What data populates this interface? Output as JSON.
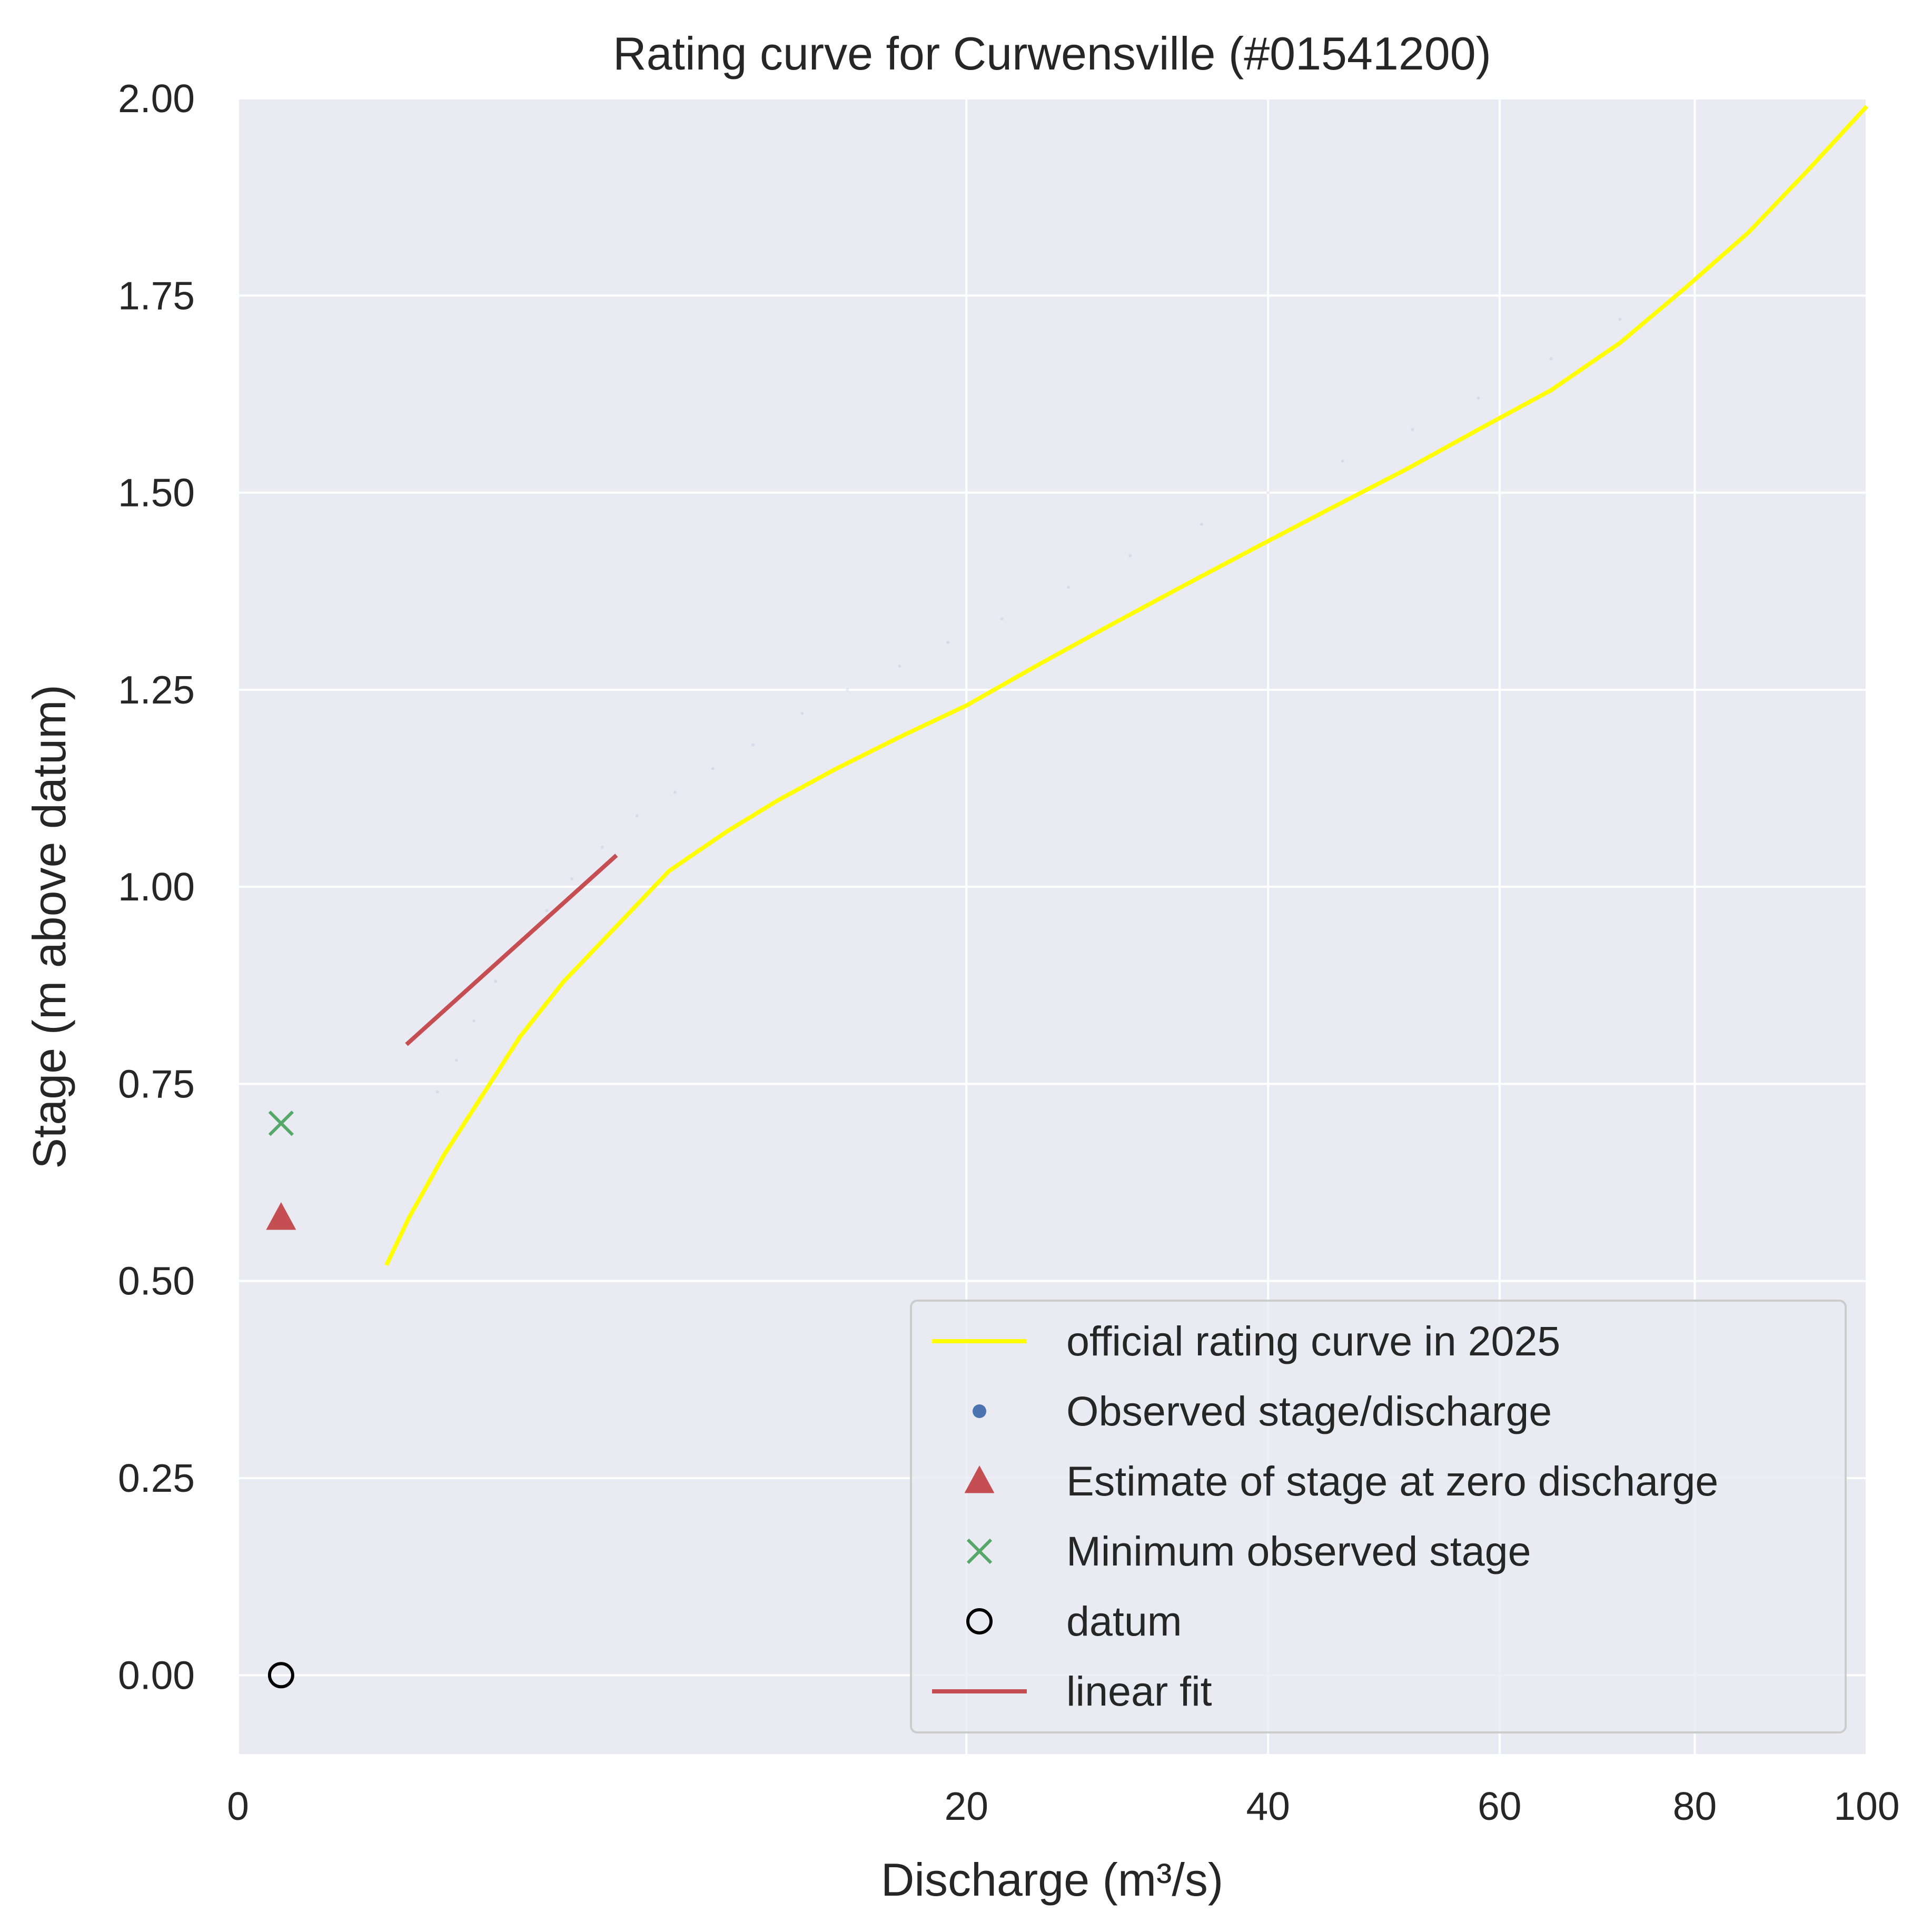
{
  "chart_data": {
    "type": "line",
    "title": "Rating curve for Curwensville (#01541200)",
    "xlabel": "Discharge (m³/s)",
    "ylabel": "Stage (m above datum)",
    "x_scale": "sqrt",
    "xlim": [
      0,
      100
    ],
    "ylim": [
      -0.1,
      2.0
    ],
    "x_ticks": [
      0,
      20,
      40,
      60,
      80,
      100
    ],
    "x_tick_labels": [
      "0",
      "20",
      "40",
      "60",
      "80",
      "100"
    ],
    "y_ticks": [
      0.0,
      0.25,
      0.5,
      0.75,
      1.0,
      1.25,
      1.5,
      1.75,
      2.0
    ],
    "y_tick_labels": [
      "0.00",
      "0.25",
      "0.50",
      "0.75",
      "1.00",
      "1.25",
      "1.50",
      "1.75",
      "2.00"
    ],
    "grid": true,
    "legend_position": "lower right",
    "series": [
      {
        "name": "official rating curve in 2025",
        "kind": "line",
        "color": "#ffff00",
        "x": [
          0.83,
          1.1,
          1.6,
          2.2,
          3.0,
          4.0,
          5.4,
          7.0,
          9.0,
          11.0,
          13.5,
          16.5,
          20.0,
          24.0,
          28.5,
          33.5,
          39.0,
          45.0,
          51.5,
          58.0,
          65.0,
          72.0,
          79.0,
          86.0,
          93.0,
          100.0
        ],
        "y": [
          0.52,
          0.58,
          0.66,
          0.73,
          0.81,
          0.88,
          0.95,
          1.02,
          1.07,
          1.11,
          1.15,
          1.19,
          1.23,
          1.28,
          1.33,
          1.38,
          1.43,
          1.48,
          1.53,
          1.58,
          1.63,
          1.69,
          1.76,
          1.83,
          1.91,
          1.99
        ]
      },
      {
        "name": "Observed stage/discharge",
        "kind": "scatter",
        "color": "#4c72b0",
        "x": [
          1.5,
          1.8,
          2.1,
          2.5,
          3.0,
          3.6,
          4.2,
          5.0,
          6.0,
          7.2,
          8.5,
          10.0,
          12.0,
          14.0,
          16.5,
          19.0,
          22.0,
          26.0,
          30.0,
          35.0,
          40.0,
          46.0,
          52.0,
          58.0,
          65.0,
          72.0
        ],
        "y": [
          0.74,
          0.78,
          0.83,
          0.88,
          0.93,
          0.97,
          1.01,
          1.05,
          1.09,
          1.12,
          1.15,
          1.18,
          1.22,
          1.25,
          1.28,
          1.31,
          1.34,
          1.38,
          1.42,
          1.46,
          1.5,
          1.54,
          1.58,
          1.62,
          1.67,
          1.72
        ]
      },
      {
        "name": "Estimate of stage at zero discharge",
        "kind": "marker",
        "marker": "triangle",
        "color": "#c44e52",
        "x": [
          0.07
        ],
        "y": [
          0.58
        ]
      },
      {
        "name": "Minimum observed stage",
        "kind": "marker",
        "marker": "x",
        "color": "#55a868",
        "x": [
          0.07
        ],
        "y": [
          0.7
        ]
      },
      {
        "name": "datum",
        "kind": "marker",
        "marker": "circle",
        "color": "#000000",
        "x": [
          0.07
        ],
        "y": [
          0.0
        ]
      },
      {
        "name": "linear fit",
        "kind": "line",
        "color": "#c44e52",
        "x": [
          1.07,
          5.4
        ],
        "y": [
          0.8,
          1.04
        ]
      }
    ]
  }
}
